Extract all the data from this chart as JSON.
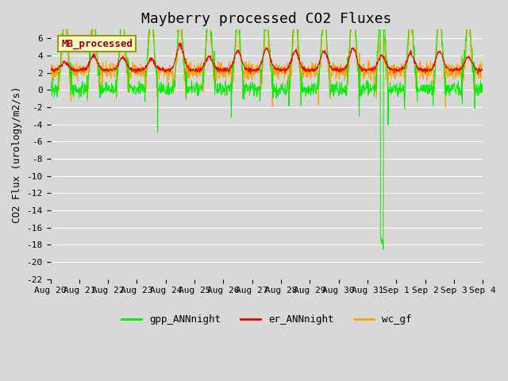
{
  "title": "Mayberry processed CO2 Fluxes",
  "ylabel": "CO2 Flux (urology/m2/s)",
  "ylim": [
    -22,
    7
  ],
  "yticks": [
    -22,
    -20,
    -18,
    -16,
    -14,
    -12,
    -10,
    -8,
    -6,
    -4,
    -2,
    0,
    2,
    4,
    6
  ],
  "colors": {
    "gpp_ANNnight": "#00EE00",
    "er_ANNnight": "#EE0000",
    "wc_gf": "#FFA500"
  },
  "legend_labels": [
    "gpp_ANNnight",
    "er_ANNnight",
    "wc_gf"
  ],
  "inset_label": "MB_processed",
  "inset_label_color": "#990000",
  "inset_bg_color": "#FFFFCC",
  "inset_border_color": "#999900",
  "background_color": "#D8D8D8",
  "plot_bg_color": "#D8D8D8",
  "grid_color": "#FFFFFF",
  "title_fontsize": 13,
  "axis_fontsize": 9,
  "tick_fontsize": 8,
  "legend_fontsize": 9,
  "xtick_labels": [
    "Aug 20",
    "Aug 21",
    "Aug 22",
    "Aug 23",
    "Aug 24",
    "Aug 25",
    "Aug 26",
    "Aug 27",
    "Aug 28",
    "Aug 29",
    "Aug 30",
    "Aug 31",
    "Sep 1",
    "Sep 2",
    "Sep 3",
    "Sep 4"
  ],
  "n_points_per_day": 96,
  "n_days": 15
}
